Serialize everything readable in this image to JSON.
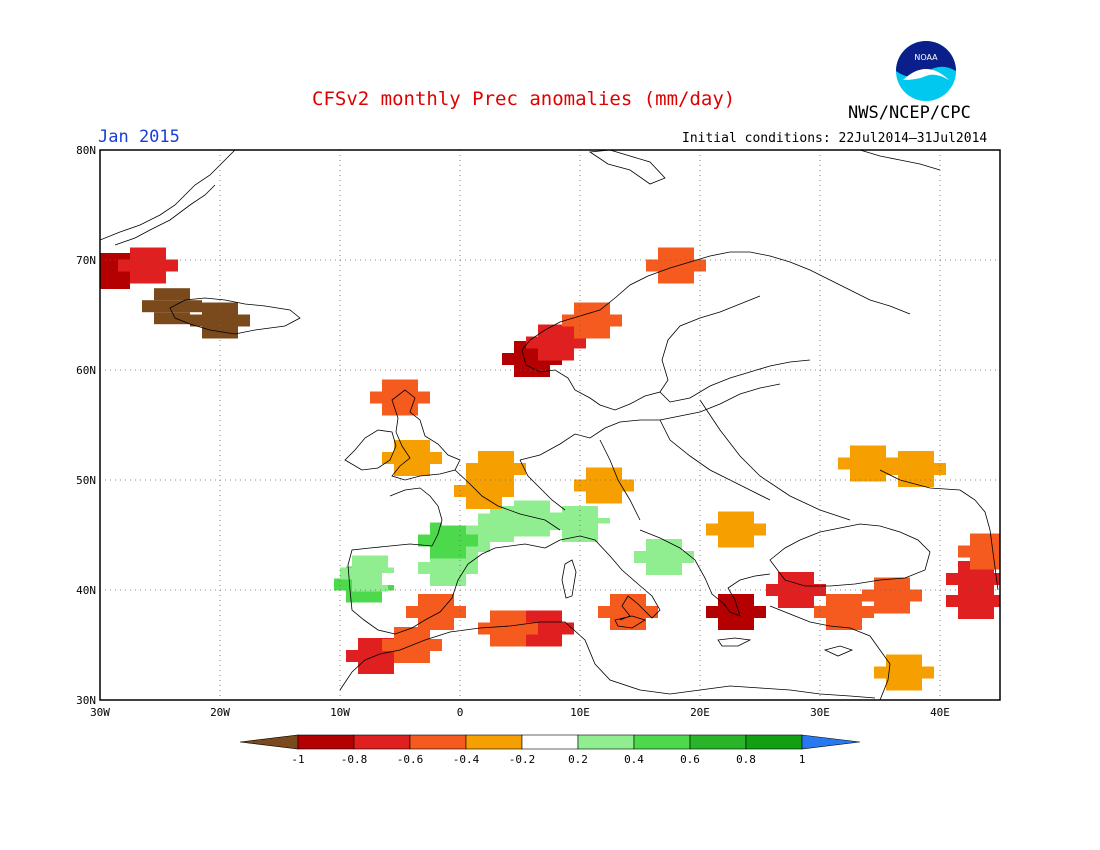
{
  "header": {
    "title": "CFSv2 monthly Prec anomalies (mm/day)",
    "month": "Jan 2015",
    "initial_conditions": "Initial conditions: 22Jul2014–31Jul2014",
    "agency": "NWS/NCEP/CPC",
    "logo_text": "NOAA"
  },
  "map": {
    "lon_range": [
      -30,
      45
    ],
    "lat_range": [
      30,
      80
    ],
    "lat_ticks": [
      {
        "value": 80,
        "label": "80N"
      },
      {
        "value": 70,
        "label": "70N"
      },
      {
        "value": 60,
        "label": "60N"
      },
      {
        "value": 50,
        "label": "50N"
      },
      {
        "value": 40,
        "label": "40N"
      },
      {
        "value": 30,
        "label": "30N"
      }
    ],
    "lon_ticks": [
      {
        "value": -30,
        "label": "30W"
      },
      {
        "value": -20,
        "label": "20W"
      },
      {
        "value": -10,
        "label": "10W"
      },
      {
        "value": 0,
        "label": "0"
      },
      {
        "value": 10,
        "label": "10E"
      },
      {
        "value": 20,
        "label": "20E"
      },
      {
        "value": 30,
        "label": "30E"
      },
      {
        "value": 40,
        "label": "40E"
      }
    ],
    "gridlines": "dotted",
    "anomaly_patches": [
      {
        "lon": -8,
        "lat": 40.5,
        "level": 7
      },
      {
        "lon": -7.5,
        "lat": 41.5,
        "level": 6
      },
      {
        "lon": -4,
        "lat": 41,
        "level": 5
      },
      {
        "lon": -1,
        "lat": 42,
        "level": 6
      },
      {
        "lon": 0,
        "lat": 44,
        "level": 6
      },
      {
        "lon": -1,
        "lat": 44.5,
        "level": 7
      },
      {
        "lon": 3,
        "lat": 46,
        "level": 6
      },
      {
        "lon": 0,
        "lat": 47.5,
        "level": 5
      },
      {
        "lon": 6,
        "lat": 46.5,
        "level": 6
      },
      {
        "lon": 10,
        "lat": 46,
        "level": 6
      },
      {
        "lon": 14,
        "lat": 45.5,
        "level": 5
      },
      {
        "lon": 17,
        "lat": 43,
        "level": 6
      },
      {
        "lon": 2,
        "lat": 49,
        "level": 4
      },
      {
        "lon": 3,
        "lat": 51,
        "level": 4
      },
      {
        "lon": -4,
        "lat": 52,
        "level": 4
      },
      {
        "lon": 12,
        "lat": 49.5,
        "level": 4
      },
      {
        "lon": 23,
        "lat": 45.5,
        "level": 4
      },
      {
        "lon": 34,
        "lat": 51.5,
        "level": 4
      },
      {
        "lon": 38,
        "lat": 51,
        "level": 4
      },
      {
        "lon": 37,
        "lat": 32.5,
        "level": 4
      },
      {
        "lon": -24,
        "lat": 65.8,
        "level": 0
      },
      {
        "lon": -20,
        "lat": 64.5,
        "level": 0
      },
      {
        "lon": -29,
        "lat": 69,
        "level": 1
      },
      {
        "lon": -26,
        "lat": 69.5,
        "level": 2
      },
      {
        "lon": 6,
        "lat": 61,
        "level": 1
      },
      {
        "lon": 8,
        "lat": 62.5,
        "level": 2
      },
      {
        "lon": 11,
        "lat": 64.5,
        "level": 3
      },
      {
        "lon": 18,
        "lat": 69.5,
        "level": 3
      },
      {
        "lon": -5,
        "lat": 57.5,
        "level": 3
      },
      {
        "lon": -7,
        "lat": 34,
        "level": 2
      },
      {
        "lon": -4,
        "lat": 35,
        "level": 3
      },
      {
        "lon": 7,
        "lat": 36.5,
        "level": 2
      },
      {
        "lon": 4,
        "lat": 36.5,
        "level": 3
      },
      {
        "lon": 23,
        "lat": 38,
        "level": 1
      },
      {
        "lon": 28,
        "lat": 40,
        "level": 2
      },
      {
        "lon": 32,
        "lat": 38,
        "level": 3
      },
      {
        "lon": 36,
        "lat": 39.5,
        "level": 3
      },
      {
        "lon": 43,
        "lat": 39,
        "level": 2
      },
      {
        "lon": 43,
        "lat": 41,
        "level": 2
      },
      {
        "lon": 44,
        "lat": 43.5,
        "level": 3
      },
      {
        "lon": -2,
        "lat": 38,
        "level": 3
      },
      {
        "lon": 14,
        "lat": 38,
        "level": 3
      }
    ]
  },
  "colorbar": {
    "labels": [
      "-1",
      "-0.8",
      "-0.6",
      "-0.4",
      "-0.2",
      "0.2",
      "0.4",
      "0.6",
      "0.8",
      "1"
    ],
    "colors": [
      "#7a4a1c",
      "#b40000",
      "#e02020",
      "#f55a1e",
      "#f5a000",
      "#ffffff",
      "#90ee90",
      "#4cd94c",
      "#2ab42a",
      "#12a012",
      "#2878f0"
    ]
  }
}
